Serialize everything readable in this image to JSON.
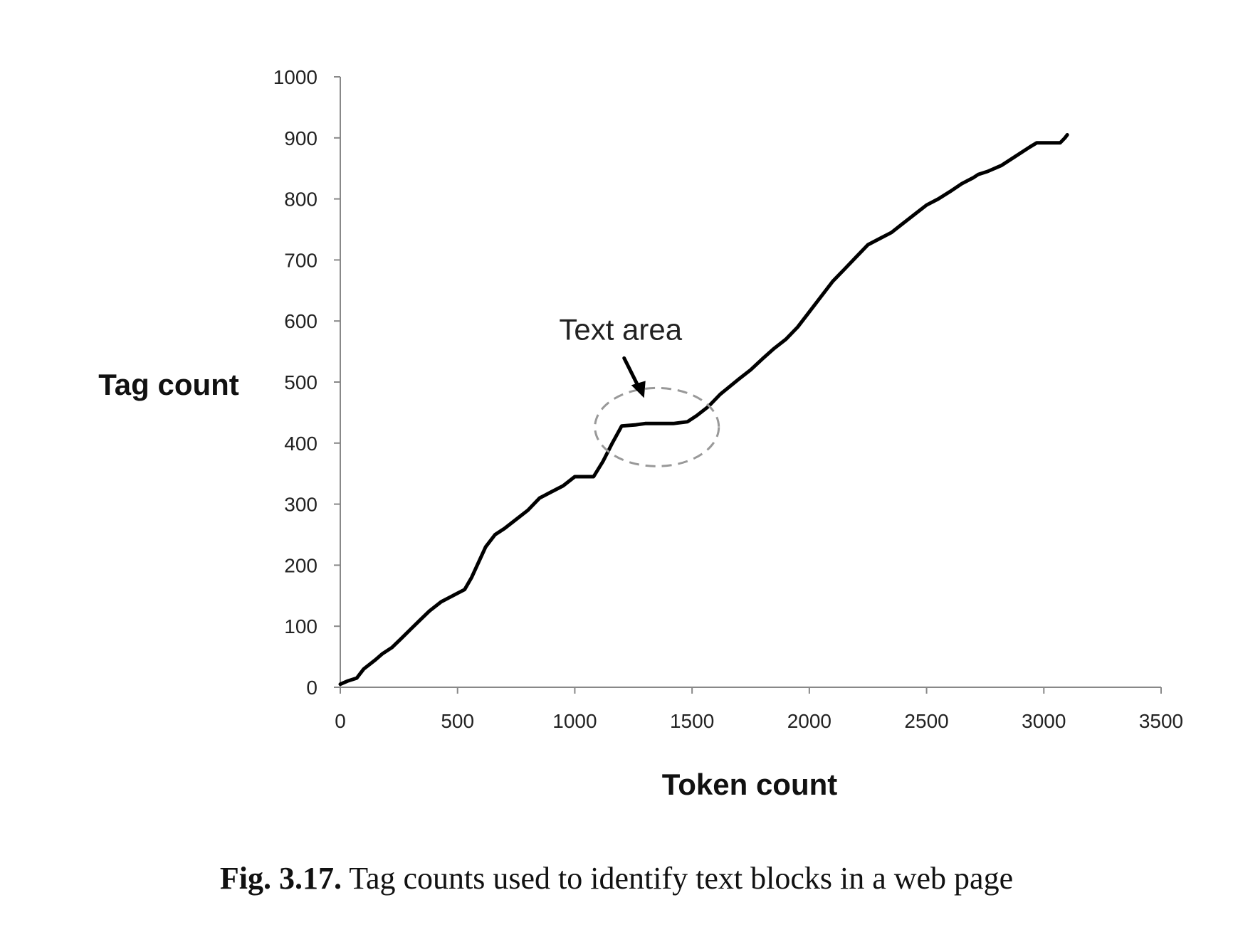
{
  "chart_data": {
    "type": "line",
    "xlabel": "Token count",
    "ylabel": "Tag count",
    "xlim": [
      0,
      3500
    ],
    "ylim": [
      0,
      1000
    ],
    "xticks": [
      "0",
      "500",
      "1000",
      "1500",
      "2000",
      "2500",
      "3000",
      "3500"
    ],
    "yticks": [
      "0",
      "100",
      "200",
      "300",
      "400",
      "500",
      "600",
      "700",
      "800",
      "900",
      "1000"
    ],
    "grid": false,
    "legend": "none",
    "line_color": "#000000",
    "series": [
      {
        "x": [
          0,
          30,
          70,
          100,
          150,
          180,
          220,
          260,
          300,
          340,
          380,
          430,
          480,
          530,
          560,
          620,
          660,
          700,
          750,
          800,
          850,
          900,
          950,
          1000,
          1050,
          1080,
          1120,
          1160,
          1200,
          1260,
          1300,
          1360,
          1420,
          1480,
          1520,
          1570,
          1620,
          1700,
          1750,
          1800,
          1850,
          1900,
          1950,
          2000,
          2050,
          2100,
          2150,
          2200,
          2250,
          2300,
          2350,
          2400,
          2450,
          2500,
          2550,
          2600,
          2650,
          2700,
          2720,
          2760,
          2820,
          2880,
          2940,
          2970,
          3000,
          3040,
          3070,
          3090,
          3100
        ],
        "y": [
          5,
          10,
          15,
          30,
          45,
          55,
          65,
          80,
          95,
          110,
          125,
          140,
          150,
          160,
          180,
          230,
          250,
          260,
          275,
          290,
          310,
          320,
          330,
          345,
          345,
          345,
          370,
          400,
          428,
          430,
          432,
          432,
          432,
          435,
          445,
          460,
          480,
          505,
          520,
          538,
          555,
          570,
          590,
          615,
          640,
          665,
          685,
          705,
          725,
          735,
          745,
          760,
          775,
          790,
          800,
          812,
          825,
          835,
          840,
          845,
          855,
          870,
          885,
          892,
          892,
          892,
          892,
          900,
          905
        ]
      }
    ],
    "annotations": [
      {
        "text": "Text area",
        "x": 1350,
        "y": 432
      }
    ]
  },
  "caption": {
    "label": "Fig. 3.17.",
    "text": " Tag counts used to identify text blocks in a web page"
  }
}
